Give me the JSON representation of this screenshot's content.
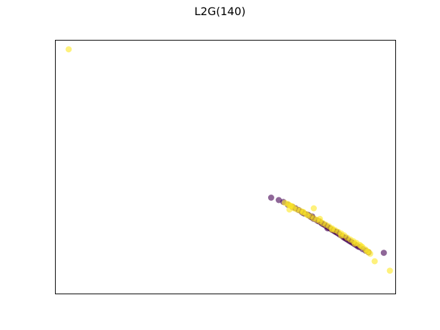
{
  "chart_data": {
    "type": "scatter",
    "title": "L2G(140)",
    "xlabel": "",
    "ylabel": "",
    "xlim": [
      -0.08,
      1.04
    ],
    "ylim": [
      -0.04,
      1.04
    ],
    "grid": false,
    "ticks": "hidden",
    "colors": {
      "class_a": "#440154",
      "class_b": "#fde725"
    },
    "marker_alpha": 0.6,
    "series": [
      {
        "points": [
          [
            0.63,
            0.37
          ],
          [
            0.655,
            0.36
          ],
          [
            0.67,
            0.352
          ],
          [
            0.685,
            0.34
          ],
          [
            0.7,
            0.331
          ],
          [
            0.71,
            0.325
          ],
          [
            0.72,
            0.318
          ],
          [
            0.73,
            0.31
          ],
          [
            0.74,
            0.302
          ],
          [
            0.75,
            0.298
          ],
          [
            0.755,
            0.294
          ],
          [
            0.76,
            0.288
          ],
          [
            0.765,
            0.285
          ],
          [
            0.77,
            0.28
          ],
          [
            0.78,
            0.274
          ],
          [
            0.79,
            0.268
          ],
          [
            0.795,
            0.262
          ],
          [
            0.8,
            0.258
          ],
          [
            0.805,
            0.255
          ],
          [
            0.81,
            0.25
          ],
          [
            0.815,
            0.246
          ],
          [
            0.82,
            0.242
          ],
          [
            0.825,
            0.238
          ],
          [
            0.83,
            0.233
          ],
          [
            0.835,
            0.23
          ],
          [
            0.84,
            0.226
          ],
          [
            0.845,
            0.222
          ],
          [
            0.85,
            0.218
          ],
          [
            0.855,
            0.213
          ],
          [
            0.86,
            0.21
          ],
          [
            0.865,
            0.205
          ],
          [
            0.87,
            0.2
          ],
          [
            0.875,
            0.196
          ],
          [
            0.88,
            0.192
          ],
          [
            0.885,
            0.188
          ],
          [
            0.89,
            0.184
          ],
          [
            0.895,
            0.18
          ],
          [
            0.9,
            0.176
          ],
          [
            0.905,
            0.172
          ],
          [
            0.91,
            0.168
          ],
          [
            0.915,
            0.163
          ],
          [
            0.92,
            0.16
          ],
          [
            0.93,
            0.152
          ],
          [
            0.94,
            0.145
          ],
          [
            0.95,
            0.138
          ],
          [
            0.735,
            0.305
          ],
          [
            0.765,
            0.29
          ],
          [
            0.785,
            0.27
          ],
          [
            0.815,
            0.24
          ],
          [
            0.845,
            0.225
          ],
          [
            0.875,
            0.2
          ],
          [
            1.0,
            0.136
          ]
        ]
      },
      {
        "points": [
          [
            -0.035,
            1.0
          ],
          [
            0.675,
            0.348
          ],
          [
            0.685,
            0.343
          ],
          [
            0.69,
            0.338
          ],
          [
            0.695,
            0.335
          ],
          [
            0.7,
            0.333
          ],
          [
            0.705,
            0.325
          ],
          [
            0.715,
            0.32
          ],
          [
            0.725,
            0.315
          ],
          [
            0.735,
            0.307
          ],
          [
            0.745,
            0.3
          ],
          [
            0.75,
            0.295
          ],
          [
            0.76,
            0.29
          ],
          [
            0.77,
            0.282
          ],
          [
            0.78,
            0.276
          ],
          [
            0.79,
            0.27
          ],
          [
            0.8,
            0.262
          ],
          [
            0.81,
            0.255
          ],
          [
            0.82,
            0.248
          ],
          [
            0.83,
            0.24
          ],
          [
            0.84,
            0.232
          ],
          [
            0.85,
            0.225
          ],
          [
            0.86,
            0.218
          ],
          [
            0.87,
            0.21
          ],
          [
            0.88,
            0.2
          ],
          [
            0.89,
            0.192
          ],
          [
            0.9,
            0.185
          ],
          [
            0.91,
            0.178
          ],
          [
            0.92,
            0.17
          ],
          [
            0.93,
            0.16
          ],
          [
            0.94,
            0.15
          ],
          [
            0.95,
            0.14
          ],
          [
            0.77,
            0.325
          ],
          [
            0.69,
            0.32
          ],
          [
            0.735,
            0.31
          ],
          [
            0.79,
            0.28
          ],
          [
            0.83,
            0.235
          ],
          [
            0.86,
            0.21
          ],
          [
            0.905,
            0.175
          ],
          [
            0.925,
            0.165
          ],
          [
            0.945,
            0.142
          ],
          [
            0.955,
            0.132
          ],
          [
            0.97,
            0.1
          ],
          [
            1.02,
            0.06
          ]
        ]
      }
    ]
  }
}
